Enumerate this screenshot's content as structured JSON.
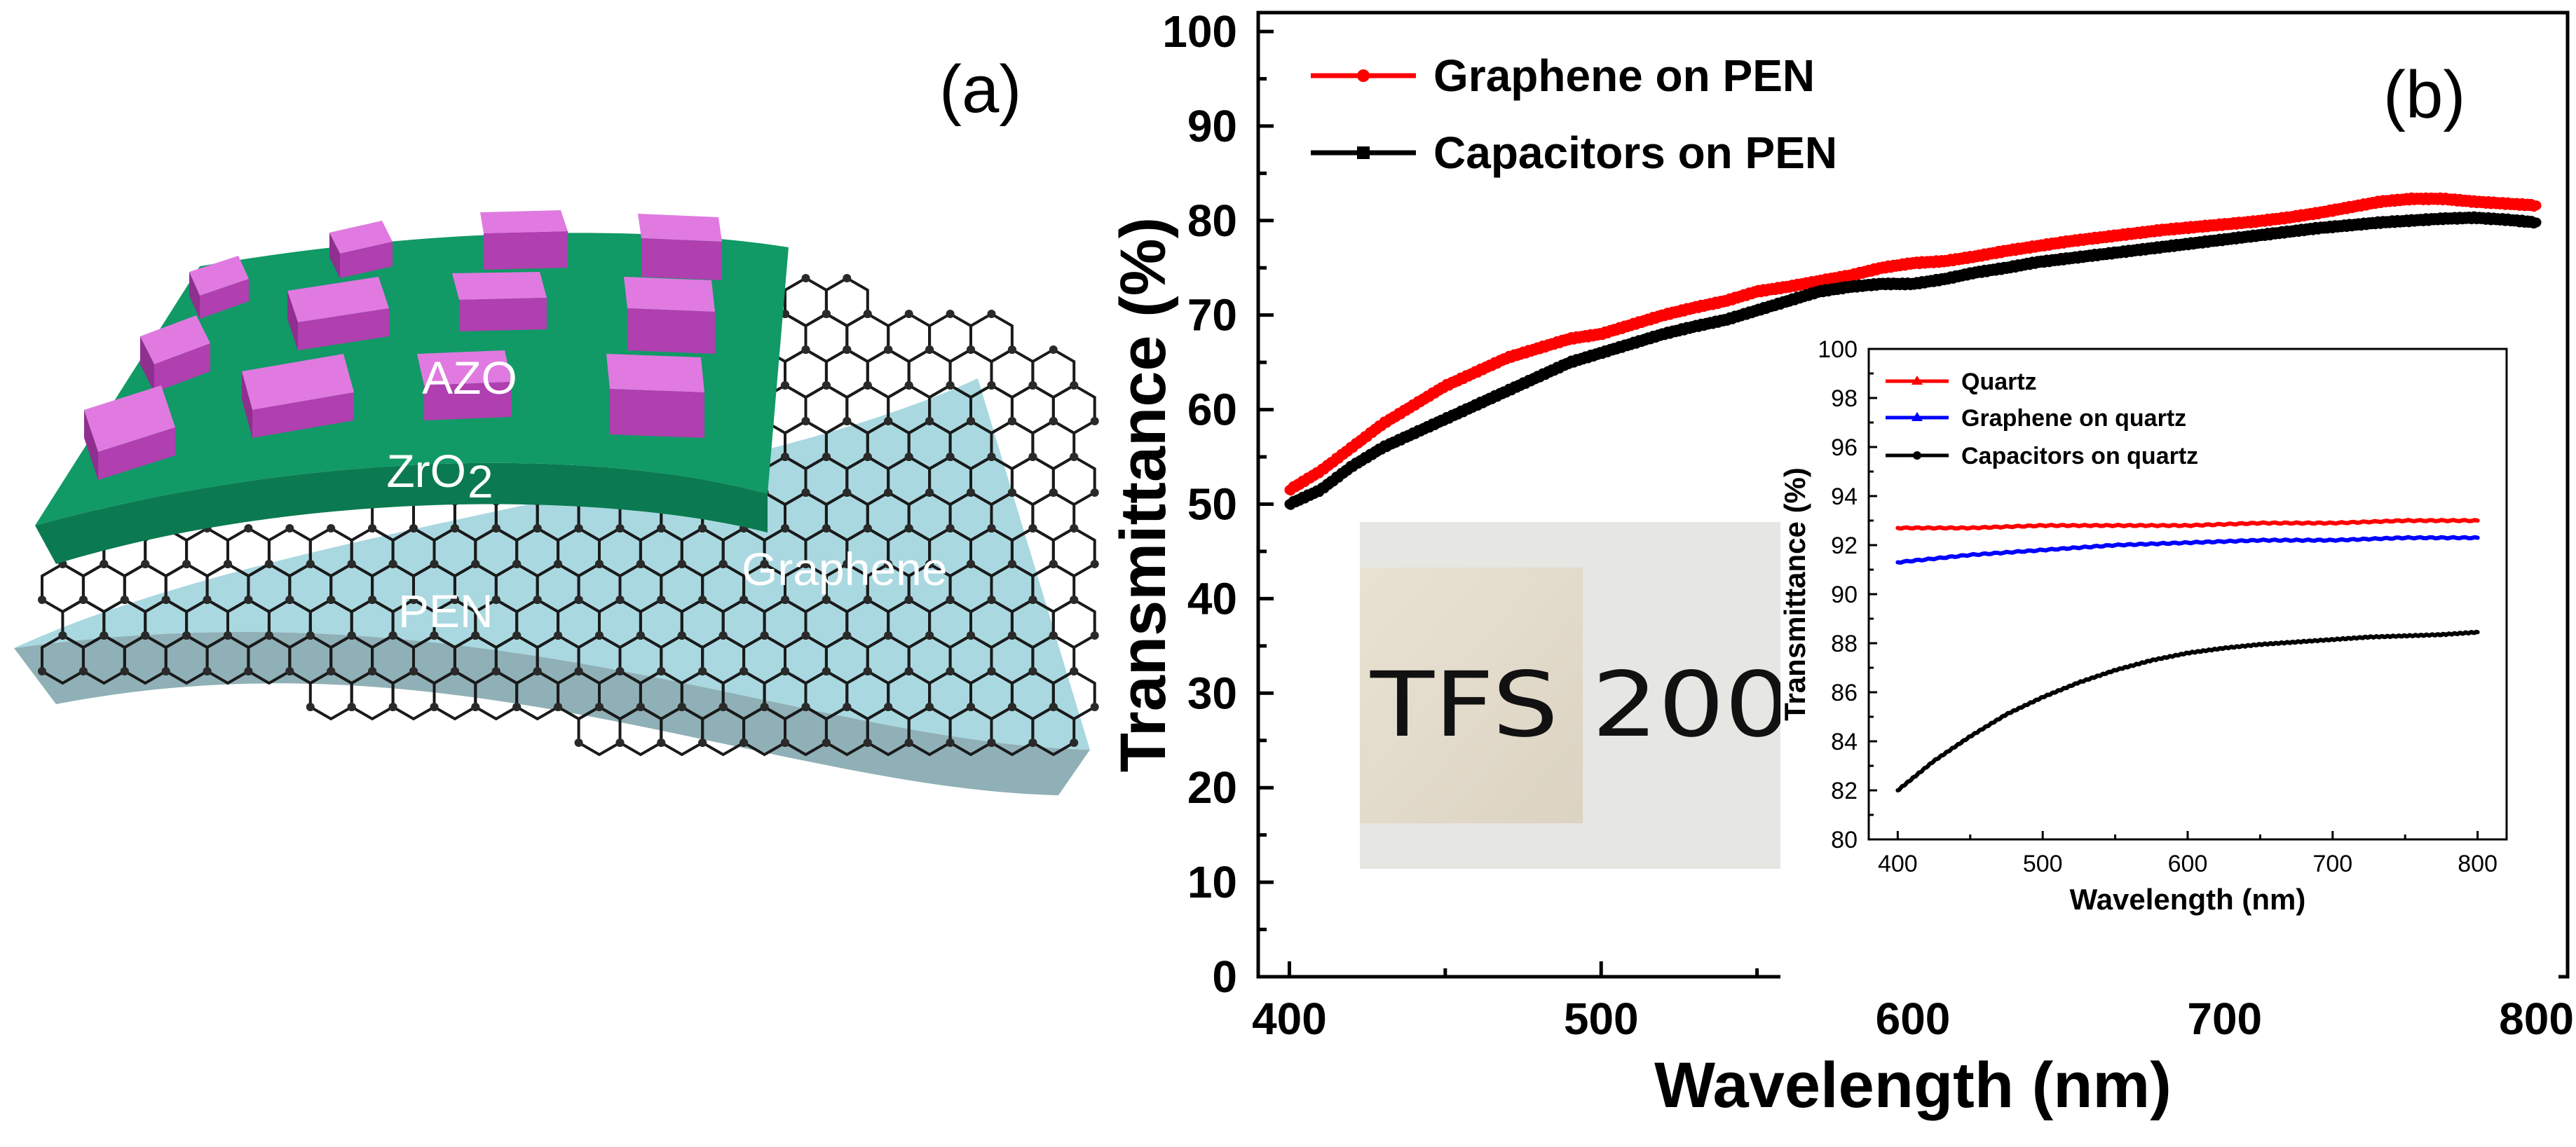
{
  "panel_a": {
    "label": "(a)",
    "layers": {
      "azo": "AZO",
      "zro2": "ZrO",
      "zro2_sub": "2",
      "graphene": "Graphene",
      "pen": "PEN"
    },
    "colors": {
      "azo": "#c84fc8",
      "zro2": "#119966",
      "graphene_sheet": "#a9d8e0",
      "pen": "#8fb0b6"
    }
  },
  "panel_b": {
    "label": "(b)",
    "photo_text": "TFS 200"
  },
  "chart_data": [
    {
      "id": "main",
      "type": "line",
      "title": "",
      "xlabel": "Wavelength (nm)",
      "ylabel": "Transmittance (%)",
      "xlim": [
        390,
        810
      ],
      "ylim": [
        0,
        102
      ],
      "xticks": [
        400,
        500,
        600,
        700,
        800
      ],
      "yticks": [
        0,
        10,
        20,
        30,
        40,
        50,
        60,
        70,
        80,
        90,
        100
      ],
      "legend_position": "top-left",
      "series": [
        {
          "name": "Graphene on PEN",
          "color": "#ff0000",
          "marker": "circle",
          "x": [
            400,
            410,
            420,
            430,
            440,
            450,
            460,
            470,
            480,
            490,
            500,
            510,
            520,
            530,
            540,
            550,
            560,
            570,
            580,
            590,
            600,
            610,
            620,
            630,
            640,
            650,
            660,
            670,
            680,
            690,
            700,
            710,
            720,
            730,
            740,
            750,
            760,
            770,
            780,
            790,
            800
          ],
          "y": [
            51.5,
            53.5,
            56.0,
            58.5,
            60.5,
            62.5,
            64.0,
            65.5,
            66.5,
            67.5,
            68.0,
            69.0,
            70.0,
            70.8,
            71.5,
            72.5,
            73.0,
            73.6,
            74.2,
            75.0,
            75.5,
            75.7,
            76.2,
            76.8,
            77.3,
            77.8,
            78.2,
            78.6,
            79.0,
            79.3,
            79.6,
            79.9,
            80.3,
            80.8,
            81.4,
            82.0,
            82.3,
            82.3,
            82.0,
            81.8,
            81.6
          ]
        },
        {
          "name": "Capacitors on PEN",
          "color": "#000000",
          "marker": "square",
          "x": [
            400,
            410,
            420,
            430,
            440,
            450,
            460,
            470,
            480,
            490,
            500,
            510,
            520,
            530,
            540,
            550,
            560,
            570,
            580,
            590,
            600,
            610,
            620,
            630,
            640,
            650,
            660,
            670,
            680,
            690,
            700,
            710,
            720,
            730,
            740,
            750,
            760,
            770,
            780,
            790,
            800
          ],
          "y": [
            50.0,
            51.5,
            54.0,
            56.0,
            57.5,
            59.0,
            60.5,
            62.0,
            63.5,
            65.0,
            66.0,
            67.0,
            68.0,
            68.8,
            69.5,
            70.5,
            71.5,
            72.5,
            73.0,
            73.3,
            73.3,
            73.8,
            74.5,
            75.0,
            75.6,
            76.0,
            76.4,
            76.8,
            77.2,
            77.6,
            78.0,
            78.4,
            78.8,
            79.2,
            79.5,
            79.8,
            80.0,
            80.2,
            80.3,
            80.1,
            79.8
          ]
        }
      ]
    },
    {
      "id": "inset",
      "type": "line",
      "title": "",
      "xlabel": "Wavelength (nm)",
      "ylabel": "Transmittance (%)",
      "xlim": [
        380,
        820
      ],
      "ylim": [
        80,
        100
      ],
      "xticks": [
        400,
        500,
        600,
        700,
        800
      ],
      "yticks": [
        80,
        82,
        84,
        86,
        88,
        90,
        92,
        94,
        96,
        98,
        100
      ],
      "legend_position": "top-left",
      "series": [
        {
          "name": "Quartz",
          "color": "#ff0000",
          "x": [
            400,
            450,
            500,
            550,
            600,
            650,
            700,
            750,
            800
          ],
          "y": [
            92.7,
            92.7,
            92.8,
            92.8,
            92.8,
            92.9,
            92.9,
            93.0,
            93.0
          ]
        },
        {
          "name": "Graphene on quartz",
          "color": "#0000ff",
          "x": [
            400,
            450,
            500,
            550,
            600,
            650,
            700,
            750,
            800
          ],
          "y": [
            91.3,
            91.6,
            91.8,
            92.0,
            92.1,
            92.2,
            92.2,
            92.3,
            92.3
          ]
        },
        {
          "name": "Capacitors on quartz",
          "color": "#000000",
          "x": [
            400,
            425,
            450,
            475,
            500,
            525,
            550,
            575,
            600,
            625,
            650,
            675,
            700,
            725,
            750,
            775,
            800
          ],
          "y": [
            82.0,
            83.2,
            84.2,
            85.1,
            85.8,
            86.4,
            86.9,
            87.3,
            87.6,
            87.8,
            87.95,
            88.05,
            88.15,
            88.25,
            88.3,
            88.35,
            88.45
          ]
        }
      ]
    }
  ]
}
